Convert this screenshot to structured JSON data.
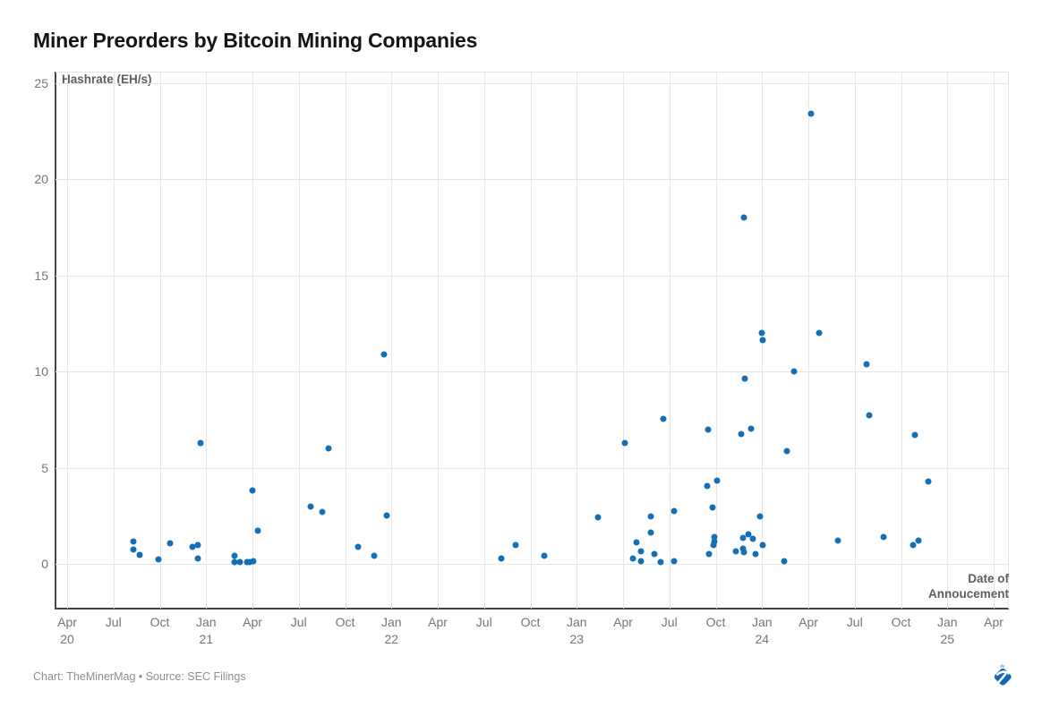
{
  "title": "Miner Preorders by Bitcoin Mining Companies",
  "attribution": "Chart: TheMinerMag • Source: SEC Filings",
  "branding": {
    "logo_name": "theminermag-pickaxe-logo"
  },
  "colors": {
    "accent": "#1270b8",
    "grid": "#e4e4e4",
    "axis": "#454545",
    "tick_text": "#757575",
    "axis_title_text": "#5e5e5e",
    "title_text": "#141414",
    "attribution_text": "#8e8e8e",
    "logo_blue": "#1168b4",
    "logo_light_blue": "#7db9e8"
  },
  "chart_data": {
    "type": "scatter",
    "title": "Miner Preorders by Bitcoin Mining Companies",
    "ylabel": "Hashrate (EH/s)",
    "xlabel_lines": [
      "Date of",
      "Annoucement"
    ],
    "ylim": [
      0,
      25
    ],
    "y_ticks": [
      0,
      5,
      10,
      15,
      20,
      25
    ],
    "grid": "on",
    "x_domain": [
      "2020-04",
      "2025-04"
    ],
    "x_ticks": [
      {
        "month": "Apr",
        "year": "20"
      },
      {
        "month": "Jul"
      },
      {
        "month": "Oct"
      },
      {
        "month": "Jan",
        "year": "21"
      },
      {
        "month": "Apr"
      },
      {
        "month": "Jul"
      },
      {
        "month": "Oct"
      },
      {
        "month": "Jan",
        "year": "22"
      },
      {
        "month": "Apr"
      },
      {
        "month": "Jul"
      },
      {
        "month": "Oct"
      },
      {
        "month": "Jan",
        "year": "23"
      },
      {
        "month": "Apr"
      },
      {
        "month": "Jul"
      },
      {
        "month": "Oct"
      },
      {
        "month": "Jan",
        "year": "24"
      },
      {
        "month": "Apr"
      },
      {
        "month": "Jul"
      },
      {
        "month": "Oct"
      },
      {
        "month": "Jan",
        "year": "25"
      },
      {
        "month": "Apr"
      }
    ],
    "points": [
      [
        "2020-08-10",
        1.15
      ],
      [
        "2020-08-10",
        0.75
      ],
      [
        "2020-08-22",
        0.45
      ],
      [
        "2020-09-28",
        0.25
      ],
      [
        "2020-10-21",
        1.05
      ],
      [
        "2020-12-04",
        0.9
      ],
      [
        "2020-12-15",
        1.0
      ],
      [
        "2020-12-15",
        0.3
      ],
      [
        "2020-12-20",
        6.3
      ],
      [
        "2021-02-26",
        0.4
      ],
      [
        "2021-02-27",
        0.1
      ],
      [
        "2021-03-07",
        0.1
      ],
      [
        "2021-03-20",
        0.1
      ],
      [
        "2021-03-27",
        0.1
      ],
      [
        "2021-04-03",
        0.15
      ],
      [
        "2021-04-01",
        3.8
      ],
      [
        "2021-04-11",
        1.7
      ],
      [
        "2021-07-24",
        3.0
      ],
      [
        "2021-08-17",
        2.7
      ],
      [
        "2021-08-29",
        6.0
      ],
      [
        "2021-10-26",
        0.9
      ],
      [
        "2021-11-28",
        0.4
      ],
      [
        "2021-12-17",
        10.9
      ],
      [
        "2021-12-22",
        2.5
      ],
      [
        "2022-08-05",
        0.3
      ],
      [
        "2022-09-02",
        1.0
      ],
      [
        "2022-10-28",
        0.4
      ],
      [
        "2023-02-12",
        2.4
      ],
      [
        "2023-04-05",
        6.3
      ],
      [
        "2023-04-20",
        0.3
      ],
      [
        "2023-04-27",
        1.1
      ],
      [
        "2023-05-06",
        0.65
      ],
      [
        "2023-05-05",
        0.15
      ],
      [
        "2023-05-25",
        2.45
      ],
      [
        "2023-05-25",
        1.65
      ],
      [
        "2023-06-02",
        0.5
      ],
      [
        "2023-06-14",
        0.1
      ],
      [
        "2023-06-19",
        7.55
      ],
      [
        "2023-07-10",
        2.75
      ],
      [
        "2023-07-10",
        0.15
      ],
      [
        "2023-09-14",
        4.05
      ],
      [
        "2023-09-16",
        7.0
      ],
      [
        "2023-09-19",
        0.5
      ],
      [
        "2023-09-25",
        2.95
      ],
      [
        "2023-09-28",
        1.4
      ],
      [
        "2023-09-28",
        1.15
      ],
      [
        "2023-09-27",
        1.0
      ],
      [
        "2023-10-03",
        4.35
      ],
      [
        "2023-11-10",
        0.65
      ],
      [
        "2023-11-20",
        6.75
      ],
      [
        "2023-11-24",
        1.35
      ],
      [
        "2023-11-25",
        0.8
      ],
      [
        "2023-11-27",
        0.6
      ],
      [
        "2023-11-27",
        18.0
      ],
      [
        "2023-11-28",
        9.65
      ],
      [
        "2023-12-05",
        1.55
      ],
      [
        "2023-12-09",
        7.05
      ],
      [
        "2023-12-14",
        1.3
      ],
      [
        "2023-12-18",
        0.5
      ],
      [
        "2023-12-28",
        2.45
      ],
      [
        "2024-01-01",
        12.0
      ],
      [
        "2024-01-03",
        11.65
      ],
      [
        "2024-01-03",
        1.0
      ],
      [
        "2024-02-15",
        0.15
      ],
      [
        "2024-02-20",
        5.85
      ],
      [
        "2024-03-04",
        10.0
      ],
      [
        "2024-04-06",
        23.4
      ],
      [
        "2024-04-23",
        12.0
      ],
      [
        "2024-05-28",
        1.2
      ],
      [
        "2024-07-24",
        10.4
      ],
      [
        "2024-07-29",
        7.75
      ],
      [
        "2024-08-28",
        1.4
      ],
      [
        "2024-10-24",
        1.0
      ],
      [
        "2024-10-29",
        6.7
      ],
      [
        "2024-11-05",
        1.2
      ],
      [
        "2024-11-25",
        4.3
      ]
    ]
  }
}
